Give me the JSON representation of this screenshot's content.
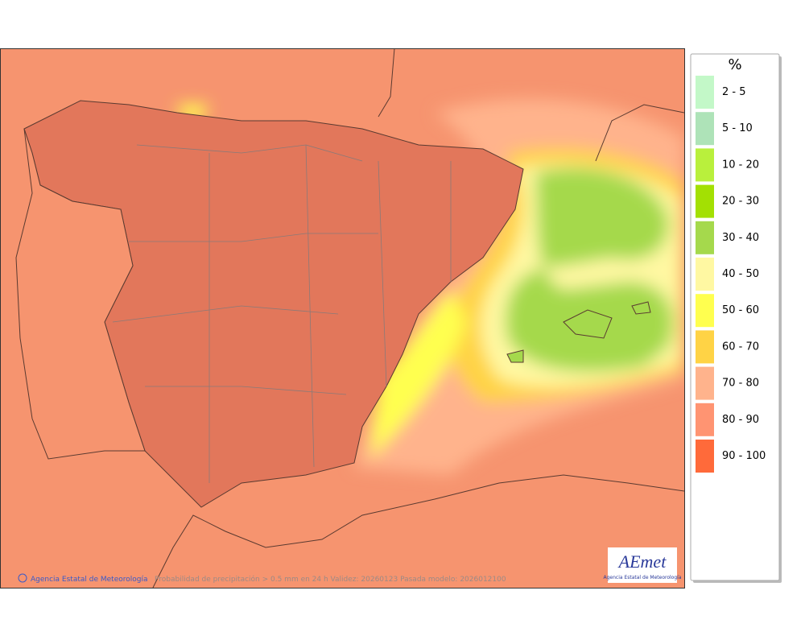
{
  "legend": {
    "title": "%",
    "items": [
      {
        "label": "2 - 5",
        "color": "#c3f8c8"
      },
      {
        "label": "5 - 10",
        "color": "#aee3b8"
      },
      {
        "label": "10 - 20",
        "color": "#b9f03c"
      },
      {
        "label": "20 - 30",
        "color": "#a3e003"
      },
      {
        "label": "30 - 40",
        "color": "#a5d94c"
      },
      {
        "label": "40 - 50",
        "color": "#fff8a2"
      },
      {
        "label": "50 - 60",
        "color": "#ffff4f"
      },
      {
        "label": "60 - 70",
        "color": "#ffd345"
      },
      {
        "label": "70 - 80",
        "color": "#ffb38c"
      },
      {
        "label": "80 - 90",
        "color": "#ff9472"
      },
      {
        "label": "90 - 100",
        "color": "#ff6a3a"
      }
    ]
  },
  "footer": {
    "credit": "Agencia Estatal de Meteorología",
    "caption": "Probabilidad de precipitación > 0.5 mm en 24 h Validez: 20260123 Pasada modelo: 2026012100"
  },
  "logo": {
    "text": "AEmet",
    "subtitle": "Agencia Estatal de Meteorología"
  }
}
